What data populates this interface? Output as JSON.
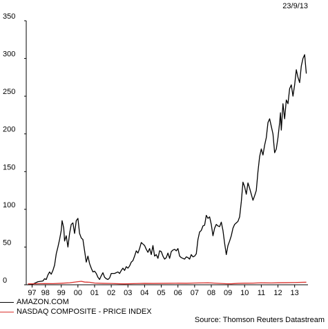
{
  "chart_data": {
    "type": "line",
    "date": "23/9/13",
    "source": "Source: Thomson Reuters Datastream",
    "ylim": [
      0,
      350
    ],
    "xlim": [
      1996.9,
      2013.8
    ],
    "y_ticks": [
      0,
      50,
      100,
      150,
      200,
      250,
      300,
      350
    ],
    "x_ticks": [
      {
        "label": "97",
        "x": 1997.25
      },
      {
        "label": "98",
        "x": 1998.05
      },
      {
        "label": "99",
        "x": 1999.0
      },
      {
        "label": "00",
        "x": 2000.0
      },
      {
        "label": "01",
        "x": 2001.0
      },
      {
        "label": "02",
        "x": 2002.0
      },
      {
        "label": "03",
        "x": 2003.0
      },
      {
        "label": "04",
        "x": 2004.0
      },
      {
        "label": "05",
        "x": 2005.0
      },
      {
        "label": "06",
        "x": 2006.0
      },
      {
        "label": "07",
        "x": 2007.0
      },
      {
        "label": "08",
        "x": 2008.0
      },
      {
        "label": "09",
        "x": 2009.0
      },
      {
        "label": "10",
        "x": 2010.0
      },
      {
        "label": "11",
        "x": 2011.0
      },
      {
        "label": "12",
        "x": 2012.0
      },
      {
        "label": "13",
        "x": 2013.0
      }
    ],
    "grid": false,
    "legend_position": "bottom-left",
    "series": [
      {
        "name": "AMAZON.COM",
        "color": "#000000",
        "points": [
          [
            1997.0,
            0
          ],
          [
            1997.3,
            1
          ],
          [
            1997.6,
            4
          ],
          [
            1997.9,
            5
          ],
          [
            1998.0,
            8
          ],
          [
            1998.1,
            7
          ],
          [
            1998.2,
            13
          ],
          [
            1998.3,
            17
          ],
          [
            1998.4,
            14
          ],
          [
            1998.5,
            19
          ],
          [
            1998.6,
            26
          ],
          [
            1998.7,
            41
          ],
          [
            1998.8,
            50
          ],
          [
            1998.9,
            60
          ],
          [
            1999.0,
            72
          ],
          [
            1999.05,
            85
          ],
          [
            1999.15,
            75
          ],
          [
            1999.2,
            58
          ],
          [
            1999.3,
            65
          ],
          [
            1999.4,
            50
          ],
          [
            1999.5,
            68
          ],
          [
            1999.6,
            80
          ],
          [
            1999.7,
            82
          ],
          [
            1999.8,
            68
          ],
          [
            1999.9,
            85
          ],
          [
            2000.0,
            88
          ],
          [
            2000.1,
            68
          ],
          [
            2000.2,
            62
          ],
          [
            2000.3,
            60
          ],
          [
            2000.4,
            45
          ],
          [
            2000.5,
            30
          ],
          [
            2000.6,
            38
          ],
          [
            2000.7,
            28
          ],
          [
            2000.8,
            22
          ],
          [
            2000.9,
            17
          ],
          [
            2001.0,
            18
          ],
          [
            2001.1,
            15
          ],
          [
            2001.2,
            10
          ],
          [
            2001.3,
            7
          ],
          [
            2001.4,
            12
          ],
          [
            2001.5,
            16
          ],
          [
            2001.6,
            10
          ],
          [
            2001.7,
            8
          ],
          [
            2001.8,
            7
          ],
          [
            2001.9,
            9
          ],
          [
            2002.0,
            15
          ],
          [
            2002.2,
            15
          ],
          [
            2002.4,
            17
          ],
          [
            2002.5,
            15
          ],
          [
            2002.6,
            19
          ],
          [
            2002.7,
            22
          ],
          [
            2002.8,
            19
          ],
          [
            2002.9,
            24
          ],
          [
            2003.0,
            22
          ],
          [
            2003.1,
            25
          ],
          [
            2003.2,
            30
          ],
          [
            2003.3,
            32
          ],
          [
            2003.4,
            38
          ],
          [
            2003.5,
            45
          ],
          [
            2003.6,
            42
          ],
          [
            2003.7,
            48
          ],
          [
            2003.8,
            56
          ],
          [
            2003.9,
            54
          ],
          [
            2004.0,
            52
          ],
          [
            2004.1,
            47
          ],
          [
            2004.2,
            43
          ],
          [
            2004.3,
            48
          ],
          [
            2004.4,
            40
          ],
          [
            2004.5,
            52
          ],
          [
            2004.6,
            38
          ],
          [
            2004.7,
            40
          ],
          [
            2004.8,
            35
          ],
          [
            2004.9,
            45
          ],
          [
            2005.0,
            44
          ],
          [
            2005.1,
            38
          ],
          [
            2005.2,
            34
          ],
          [
            2005.3,
            36
          ],
          [
            2005.4,
            42
          ],
          [
            2005.5,
            35
          ],
          [
            2005.6,
            44
          ],
          [
            2005.7,
            46
          ],
          [
            2005.8,
            47
          ],
          [
            2005.9,
            45
          ],
          [
            2006.0,
            48
          ],
          [
            2006.1,
            38
          ],
          [
            2006.2,
            36
          ],
          [
            2006.3,
            35
          ],
          [
            2006.4,
            34
          ],
          [
            2006.5,
            37
          ],
          [
            2006.6,
            36
          ],
          [
            2006.7,
            34
          ],
          [
            2006.8,
            40
          ],
          [
            2006.9,
            37
          ],
          [
            2007.0,
            38
          ],
          [
            2007.1,
            41
          ],
          [
            2007.2,
            60
          ],
          [
            2007.3,
            70
          ],
          [
            2007.4,
            72
          ],
          [
            2007.5,
            78
          ],
          [
            2007.6,
            79
          ],
          [
            2007.7,
            92
          ],
          [
            2007.8,
            88
          ],
          [
            2007.9,
            90
          ],
          [
            2008.0,
            80
          ],
          [
            2008.1,
            65
          ],
          [
            2008.2,
            75
          ],
          [
            2008.3,
            80
          ],
          [
            2008.4,
            78
          ],
          [
            2008.5,
            77
          ],
          [
            2008.6,
            83
          ],
          [
            2008.7,
            72
          ],
          [
            2008.8,
            55
          ],
          [
            2008.9,
            40
          ],
          [
            2009.0,
            52
          ],
          [
            2009.1,
            58
          ],
          [
            2009.2,
            65
          ],
          [
            2009.3,
            75
          ],
          [
            2009.4,
            80
          ],
          [
            2009.5,
            82
          ],
          [
            2009.6,
            84
          ],
          [
            2009.7,
            90
          ],
          [
            2009.8,
            110
          ],
          [
            2009.9,
            136
          ],
          [
            2010.0,
            130
          ],
          [
            2010.1,
            120
          ],
          [
            2010.2,
            135
          ],
          [
            2010.3,
            128
          ],
          [
            2010.4,
            120
          ],
          [
            2010.5,
            112
          ],
          [
            2010.6,
            118
          ],
          [
            2010.7,
            125
          ],
          [
            2010.8,
            150
          ],
          [
            2010.9,
            170
          ],
          [
            2011.0,
            180
          ],
          [
            2011.1,
            172
          ],
          [
            2011.2,
            185
          ],
          [
            2011.3,
            195
          ],
          [
            2011.4,
            215
          ],
          [
            2011.5,
            220
          ],
          [
            2011.6,
            210
          ],
          [
            2011.7,
            200
          ],
          [
            2011.8,
            175
          ],
          [
            2011.9,
            180
          ],
          [
            2012.0,
            195
          ],
          [
            2012.1,
            215
          ],
          [
            2012.15,
            228
          ],
          [
            2012.2,
            205
          ],
          [
            2012.3,
            240
          ],
          [
            2012.4,
            220
          ],
          [
            2012.5,
            245
          ],
          [
            2012.6,
            240
          ],
          [
            2012.7,
            260
          ],
          [
            2012.8,
            265
          ],
          [
            2012.9,
            250
          ],
          [
            2013.0,
            265
          ],
          [
            2013.1,
            285
          ],
          [
            2013.2,
            275
          ],
          [
            2013.3,
            268
          ],
          [
            2013.4,
            290
          ],
          [
            2013.5,
            300
          ],
          [
            2013.6,
            305
          ],
          [
            2013.7,
            280
          ]
        ]
      },
      {
        "name": "NASDAQ COMPOSITE - PRICE INDEX",
        "color": "#d9302c",
        "points": [
          [
            1997.0,
            1.2
          ],
          [
            1997.5,
            1.4
          ],
          [
            1998.0,
            1.6
          ],
          [
            1998.5,
            1.5
          ],
          [
            1999.0,
            2.0
          ],
          [
            1999.5,
            2.6
          ],
          [
            1999.9,
            3.8
          ],
          [
            2000.2,
            4.6
          ],
          [
            2000.4,
            3.6
          ],
          [
            2000.7,
            3.3
          ],
          [
            2001.0,
            2.3
          ],
          [
            2001.5,
            1.9
          ],
          [
            2002.0,
            1.7
          ],
          [
            2002.5,
            1.3
          ],
          [
            2002.8,
            1.2
          ],
          [
            2003.0,
            1.3
          ],
          [
            2003.5,
            1.6
          ],
          [
            2004.0,
            1.9
          ],
          [
            2004.5,
            1.8
          ],
          [
            2005.0,
            1.9
          ],
          [
            2005.5,
            2.0
          ],
          [
            2006.0,
            2.1
          ],
          [
            2006.5,
            2.0
          ],
          [
            2007.0,
            2.3
          ],
          [
            2007.8,
            2.6
          ],
          [
            2008.2,
            2.2
          ],
          [
            2008.9,
            1.4
          ],
          [
            2009.2,
            1.3
          ],
          [
            2009.6,
            1.9
          ],
          [
            2010.0,
            2.1
          ],
          [
            2010.5,
            2.2
          ],
          [
            2011.0,
            2.6
          ],
          [
            2011.6,
            2.4
          ],
          [
            2012.0,
            2.7
          ],
          [
            2012.5,
            2.8
          ],
          [
            2013.0,
            3.0
          ],
          [
            2013.7,
            3.4
          ]
        ]
      }
    ]
  },
  "legend": [
    {
      "label": "AMAZON.COM",
      "color": "#000000"
    },
    {
      "label": "NASDAQ COMPOSITE - PRICE INDEX",
      "color": "#d9302c"
    }
  ]
}
